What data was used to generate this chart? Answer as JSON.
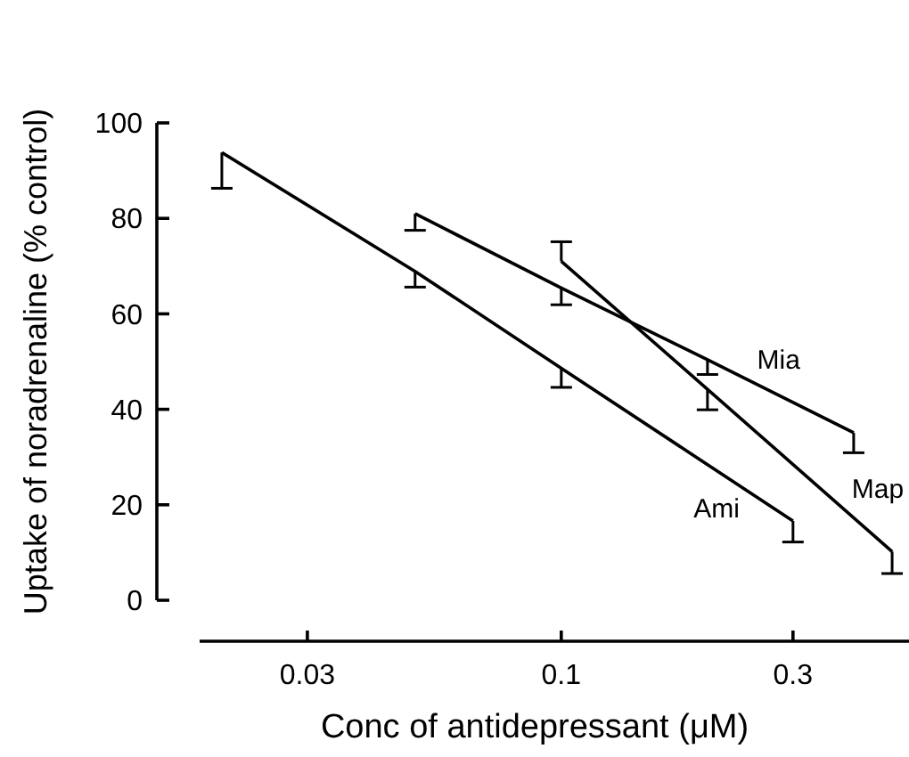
{
  "chart_data": {
    "type": "line",
    "xlabel": "Conc of antidepressant (μM)",
    "ylabel": "Uptake of noradrenaline (% control)",
    "log": "x",
    "xlim": [
      0.018,
      0.52
    ],
    "xticks": [
      0.03,
      0.1,
      0.3
    ],
    "ylim": [
      0,
      100
    ],
    "yticks": [
      0,
      20,
      40,
      60,
      80,
      100
    ],
    "grid": false,
    "legend": false,
    "marker": "none",
    "line_style": "solid",
    "series": [
      {
        "name": "Ami",
        "color": "#000000",
        "x": [
          0.02,
          0.05,
          0.1,
          0.3
        ],
        "values": [
          93.8,
          68.9,
          48.6,
          16.6
        ],
        "errors": [
          [
            86.3,
            93.8
          ],
          [
            65.6,
            68.9
          ],
          [
            44.6,
            48.6
          ],
          [
            12.2,
            16.6
          ]
        ]
      },
      {
        "name": "Mia",
        "color": "#000000",
        "x": [
          0.05,
          0.1,
          0.2,
          0.4
        ],
        "values": [
          81,
          65.4,
          50.4,
          35.1
        ],
        "errors": [
          [
            77.5,
            81
          ],
          [
            61.9,
            65.4
          ],
          [
            47.3,
            50.4
          ],
          [
            30.9,
            35.1
          ]
        ]
      },
      {
        "name": "Map",
        "color": "#000000",
        "x": [
          0.1,
          0.2,
          0.48
        ],
        "values": [
          71,
          44.2,
          10.2
        ],
        "errors": [
          [
            71,
            75.1
          ],
          [
            39.9,
            44.2
          ],
          [
            5.6,
            10.2
          ]
        ]
      }
    ]
  }
}
